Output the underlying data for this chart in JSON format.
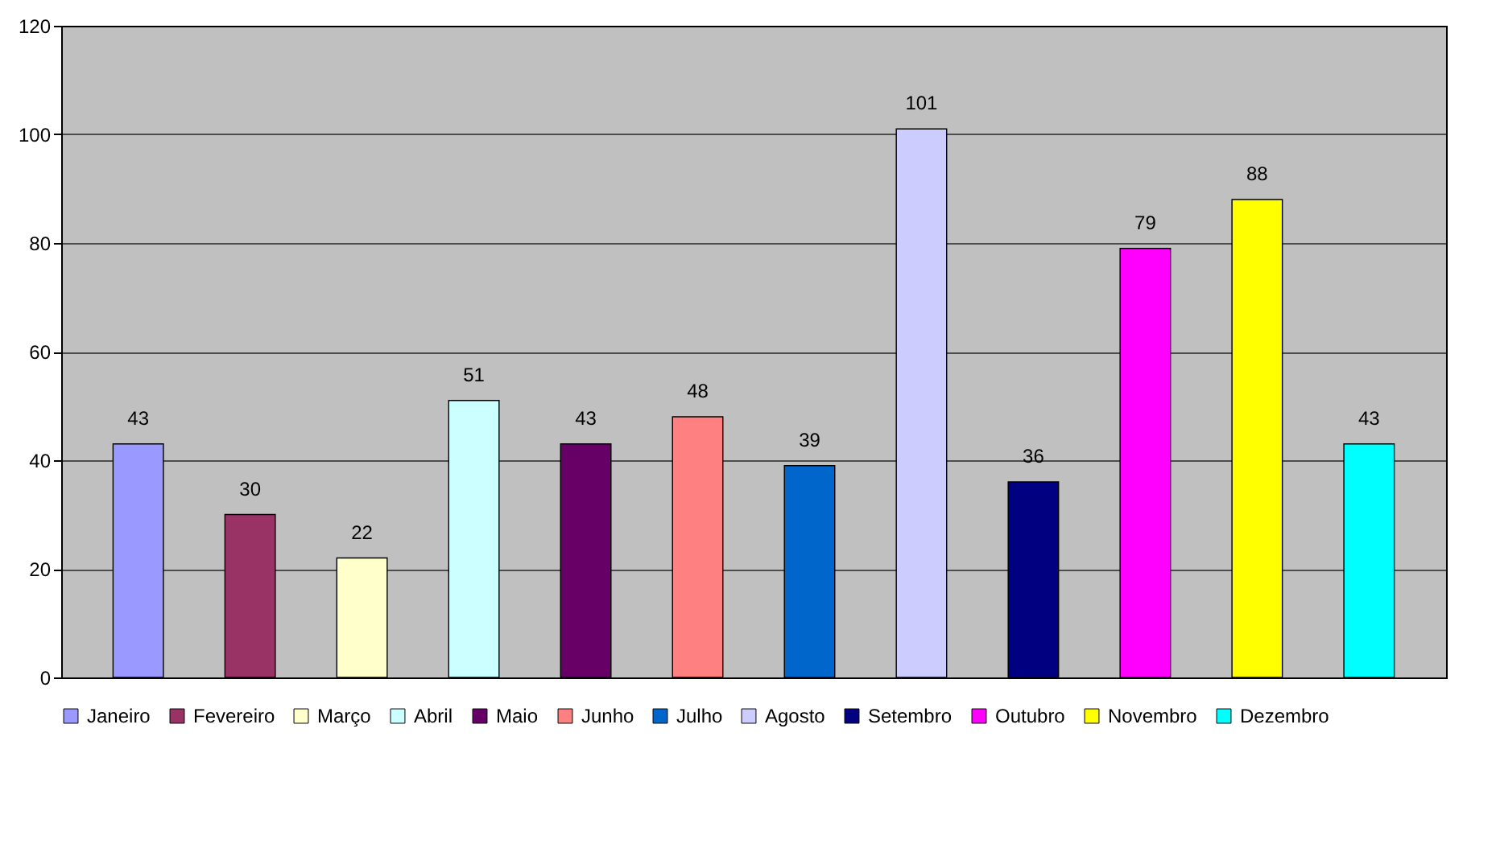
{
  "chart_data": {
    "type": "bar",
    "categories": [
      null
    ],
    "series": [
      {
        "name": "Janeiro",
        "color": "#9999ff",
        "values": [
          43
        ]
      },
      {
        "name": "Fevereiro",
        "color": "#993366",
        "values": [
          30
        ]
      },
      {
        "name": "Março",
        "color": "#ffffcc",
        "values": [
          22
        ]
      },
      {
        "name": "Abril",
        "color": "#ccffff",
        "values": [
          51
        ]
      },
      {
        "name": "Maio",
        "color": "#660066",
        "values": [
          43
        ]
      },
      {
        "name": "Junho",
        "color": "#ff8080",
        "values": [
          48
        ]
      },
      {
        "name": "Julho",
        "color": "#0066cc",
        "values": [
          39
        ]
      },
      {
        "name": "Agosto",
        "color": "#ccccff",
        "values": [
          101
        ]
      },
      {
        "name": "Setembro",
        "color": "#000080",
        "values": [
          36
        ]
      },
      {
        "name": "Outubro",
        "color": "#ff00ff",
        "values": [
          79
        ]
      },
      {
        "name": "Novembro",
        "color": "#ffff00",
        "values": [
          88
        ]
      },
      {
        "name": "Dezembro",
        "color": "#00ffff",
        "values": [
          43
        ]
      }
    ],
    "ylim": [
      0,
      120
    ],
    "yticks": [
      0,
      20,
      40,
      60,
      80,
      100,
      120
    ],
    "grid": "y",
    "data_labels": true,
    "legend": "bottom",
    "tick_labels": "y"
  }
}
